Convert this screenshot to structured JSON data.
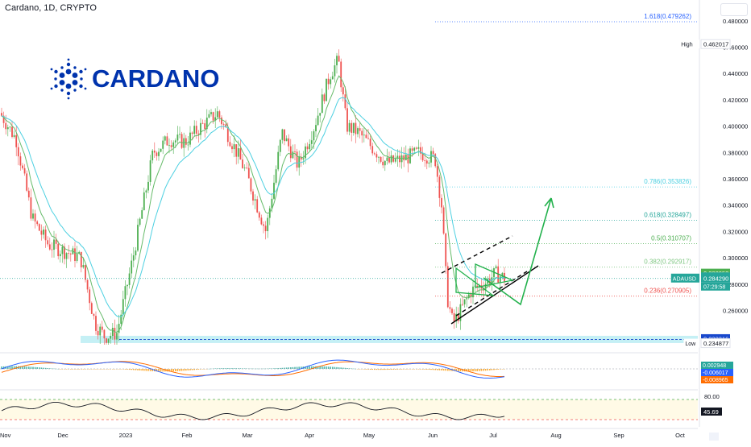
{
  "header": {
    "title": "Cardano, 1D, CRYPTO"
  },
  "logo": {
    "word": "CARDANO",
    "icon": "cardano-logo-icon",
    "color": "#0033ad"
  },
  "colors": {
    "up": "#26a69a",
    "up_body": "#4caf50",
    "down": "#ef5350",
    "ema_fast": "#66bb6a",
    "ema_slow": "#4dd0e1",
    "support_band": "#b2ebf2",
    "projection": "#22b14c",
    "macd": "#2962ff",
    "signal": "#ff6d00",
    "rsi": "#131722"
  },
  "chart_data": {
    "type": "line",
    "title": "Cardano, 1D, CRYPTO",
    "xlabel": "",
    "ylabel": "",
    "ylim": [
      0.234,
      0.486
    ],
    "grid": false,
    "x_ticks": [
      "Nov",
      "Dec",
      "2023",
      "Feb",
      "Mar",
      "Apr",
      "May",
      "Jun",
      "Jul",
      "Aug",
      "Sep",
      "Oct"
    ],
    "y_ticks": [
      "0.480000",
      "0.460000",
      "0.440000",
      "0.420000",
      "0.400000",
      "0.380000",
      "0.360000",
      "0.340000",
      "0.320000",
      "0.300000",
      "0.280000",
      "0.260000"
    ],
    "series": [
      {
        "name": "ADAUSD",
        "x": [
          "Nov",
          "Nov",
          "Dec",
          "Dec",
          "2023",
          "2023",
          "Feb",
          "Feb",
          "Mar",
          "Mar",
          "Apr",
          "Apr",
          "May",
          "May",
          "Jun",
          "Jun",
          "Jul",
          "Jul"
        ],
        "values": [
          0.41,
          0.33,
          0.31,
          0.3,
          0.248,
          0.24,
          0.39,
          0.4,
          0.37,
          0.32,
          0.37,
          0.45,
          0.4,
          0.37,
          0.37,
          0.26,
          0.282,
          0.284
        ]
      }
    ],
    "fibonacci": [
      {
        "label": "1.618(0.479262)",
        "value": 0.479262,
        "color": "#2962ff"
      },
      {
        "label": "0.786(0.353826)",
        "value": 0.353826,
        "color": "#4dd0e1"
      },
      {
        "label": "0.618(0.328497)",
        "value": 0.328497,
        "color": "#26a69a"
      },
      {
        "label": "0.5(0.310707)",
        "value": 0.310707,
        "color": "#4caf50"
      },
      {
        "label": "0.382(0.292917)",
        "value": 0.292917,
        "color": "#81c784"
      },
      {
        "label": "0.236(0.270905)",
        "value": 0.270905,
        "color": "#ef5350"
      }
    ],
    "price_labels": [
      {
        "text": "High",
        "value": "0.462017",
        "level": 0.462017,
        "bg": "#ffffff",
        "fg": "#131722"
      },
      {
        "text": "",
        "value": "0.288053",
        "level": 0.288053,
        "bg": "#4caf50",
        "fg": "#ffffff"
      },
      {
        "text": "",
        "value": "0.285239",
        "level": 0.285239,
        "bg": "#26a69a",
        "fg": "#ffffff"
      },
      {
        "text": "ADAUSD",
        "value": "0.284290",
        "level": 0.28429,
        "bg": "#26a69a",
        "fg": "#ffffff",
        "sub": "07:29:58"
      },
      {
        "text": "",
        "value": "0.238316",
        "level": 0.238316,
        "bg": "#1848cc",
        "fg": "#ffffff"
      },
      {
        "text": "Low",
        "value": "0.234877",
        "level": 0.234877,
        "bg": "#ffffff",
        "fg": "#131722"
      }
    ],
    "macd_labels": [
      "0.002948",
      "-0.006017",
      "-0.008965"
    ],
    "rsi_labels": [
      "80.00",
      "45.69"
    ]
  }
}
